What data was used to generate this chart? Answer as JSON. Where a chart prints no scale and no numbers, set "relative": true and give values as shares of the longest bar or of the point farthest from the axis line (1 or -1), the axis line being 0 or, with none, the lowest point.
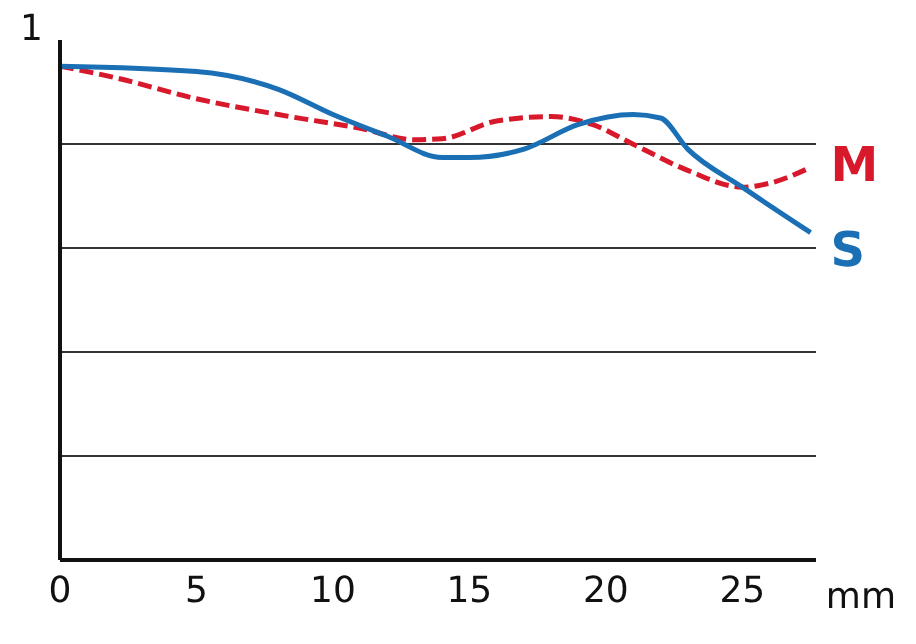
{
  "chart_data": {
    "type": "line",
    "relative": true,
    "xlabel": "mm",
    "xlim": [
      0,
      27.7
    ],
    "xticks": [
      0,
      5,
      10,
      15,
      20,
      25
    ],
    "grid": "y",
    "legend": false,
    "marker": "none",
    "annotations": [
      "1"
    ],
    "series": [
      {
        "name": "M",
        "color": "#d7192b",
        "line_style": "dashed",
        "x": [
          0,
          2,
          5,
          8,
          11,
          13,
          14,
          16,
          18,
          19.5,
          21,
          23,
          25,
          26,
          27.5
        ],
        "values": [
          1,
          0.977,
          0.934,
          0.902,
          0.874,
          0.851,
          0.853,
          0.889,
          0.898,
          0.882,
          0.842,
          0.789,
          0.755,
          0.763,
          0.795
        ]
      },
      {
        "name": "S",
        "color": "#1a6fb5",
        "line_style": "solid",
        "x": [
          0,
          5,
          8,
          10,
          12,
          14,
          15,
          17,
          19,
          21,
          22,
          23,
          25,
          27.5
        ],
        "values": [
          1,
          0.989,
          0.953,
          0.902,
          0.858,
          0.815,
          0.815,
          0.832,
          0.882,
          0.902,
          0.895,
          0.832,
          0.755,
          0.663
        ]
      }
    ]
  }
}
